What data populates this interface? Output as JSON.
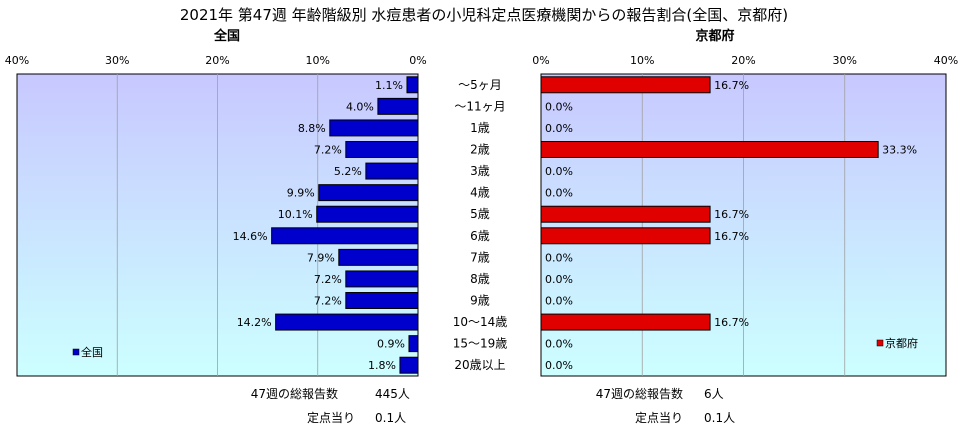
{
  "title": "2021年 第47週 年齢階級別 水痘患者の小児科定点医療機関からの報告割合(全国、京都府)",
  "panels": {
    "left": {
      "title": "全国",
      "legend": "全国"
    },
    "right": {
      "title": "京都府",
      "legend": "京都府"
    }
  },
  "colors": {
    "national": "#0000cc",
    "kyoto": "#e00000",
    "plot_top": "#c8c8ff",
    "plot_bottom": "#ccffff",
    "border": "#000000"
  },
  "footer": {
    "left": {
      "total_label": "47週の総報告数",
      "total_value": "445人",
      "per_label": "定点当り",
      "per_value": "0.1人"
    },
    "right": {
      "total_label": "47週の総報告数",
      "total_value": "6人",
      "per_label": "定点当り",
      "per_value": "0.1人"
    }
  },
  "chart_data": [
    {
      "type": "bar",
      "orientation": "horizontal",
      "direction": "right-to-left",
      "title": "全国",
      "categories": [
        "～5ヶ月",
        "～11ヶ月",
        "1歳",
        "2歳",
        "3歳",
        "4歳",
        "5歳",
        "6歳",
        "7歳",
        "8歳",
        "9歳",
        "10～14歳",
        "15～19歳",
        "20歳以上"
      ],
      "series": [
        {
          "name": "全国",
          "values": [
            1.1,
            4.0,
            8.8,
            7.2,
            5.2,
            9.9,
            10.1,
            14.6,
            7.9,
            7.2,
            7.2,
            14.2,
            0.9,
            1.8
          ]
        }
      ],
      "data_labels": [
        "1.1%",
        "4.0%",
        "8.8%",
        "7.2%",
        "5.2%",
        "9.9%",
        "10.1%",
        "14.6%",
        "7.9%",
        "7.2%",
        "7.2%",
        "14.2%",
        "0.9%",
        "1.8%"
      ],
      "xlim": [
        0,
        40
      ],
      "ticks": [
        "0%",
        "10%",
        "20%",
        "30%",
        "40%"
      ],
      "grid": true,
      "legend": "bottom-left"
    },
    {
      "type": "bar",
      "orientation": "horizontal",
      "title": "京都府",
      "categories": [
        "～5ヶ月",
        "～11ヶ月",
        "1歳",
        "2歳",
        "3歳",
        "4歳",
        "5歳",
        "6歳",
        "7歳",
        "8歳",
        "9歳",
        "10～14歳",
        "15～19歳",
        "20歳以上"
      ],
      "series": [
        {
          "name": "京都府",
          "values": [
            16.7,
            0,
            0,
            33.3,
            0,
            0,
            16.7,
            16.7,
            0,
            0,
            0,
            16.7,
            0,
            0
          ]
        }
      ],
      "data_labels": [
        "16.7%",
        "0.0%",
        "0.0%",
        "33.3%",
        "0.0%",
        "0.0%",
        "16.7%",
        "16.7%",
        "0.0%",
        "0.0%",
        "0.0%",
        "16.7%",
        "0.0%",
        "0.0%"
      ],
      "xlim": [
        0,
        40
      ],
      "ticks": [
        "0%",
        "10%",
        "20%",
        "30%",
        "40%"
      ],
      "grid": true,
      "legend": "bottom-right"
    }
  ]
}
